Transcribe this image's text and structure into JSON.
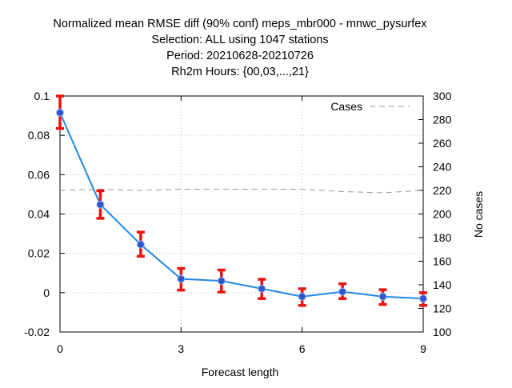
{
  "chart_data": {
    "type": "line",
    "title_lines": [
      "Normalized mean RMSE diff (90% conf) meps_mbr000 - mnwc_pysurfex",
      "Selection: ALL using  1047 stations",
      "Period: 20210628-20210726",
      "Rh2m   Hours: {00,03,...,21}"
    ],
    "xlabel": "Forecast length",
    "ylabel": "",
    "y2label": "No cases",
    "xlim": [
      0,
      9
    ],
    "ylim": [
      -0.02,
      0.1
    ],
    "y2lim": [
      100,
      300
    ],
    "x_ticks": [
      "0",
      "3",
      "6",
      "9"
    ],
    "x_tick_values": [
      0,
      3,
      6,
      9
    ],
    "y_ticks": [
      "-0.02",
      "0",
      "0.02",
      "0.04",
      "0.06",
      "0.08",
      "0.1"
    ],
    "y_tick_values": [
      -0.02,
      0,
      0.02,
      0.04,
      0.06,
      0.08,
      0.1
    ],
    "y2_ticks": [
      "100",
      "120",
      "140",
      "160",
      "180",
      "200",
      "220",
      "240",
      "260",
      "280",
      "300"
    ],
    "y2_tick_values": [
      100,
      120,
      140,
      160,
      180,
      200,
      220,
      240,
      260,
      280,
      300
    ],
    "grid": true,
    "legend": {
      "position": "top-right",
      "entries": [
        "Cases"
      ]
    },
    "series": [
      {
        "x": [
          0,
          1,
          2,
          3,
          4,
          5,
          6,
          7,
          8,
          9
        ],
        "values": [
          0.0915,
          0.0448,
          0.0245,
          0.007,
          0.006,
          0.002,
          -0.002,
          0.0005,
          -0.002,
          -0.003
        ],
        "err_low": [
          0.0835,
          0.0378,
          0.0185,
          0.0013,
          0.0003,
          -0.003,
          -0.0065,
          -0.003,
          -0.006,
          -0.0065
        ],
        "err_high": [
          0.1,
          0.0518,
          0.0308,
          0.0123,
          0.0115,
          0.0068,
          0.002,
          0.0045,
          0.0015,
          0.0
        ],
        "color": "#1e88e5",
        "error_color": "#ee1111",
        "marker_color": "#3355cc"
      },
      {
        "name": "Cases",
        "axis": "y2",
        "x": [
          0,
          1,
          2,
          3,
          4,
          5,
          6,
          7,
          8,
          9
        ],
        "values": [
          220,
          221,
          220,
          221,
          221,
          221,
          221,
          219,
          218,
          220
        ],
        "color": "#999999",
        "dash": true
      }
    ]
  }
}
